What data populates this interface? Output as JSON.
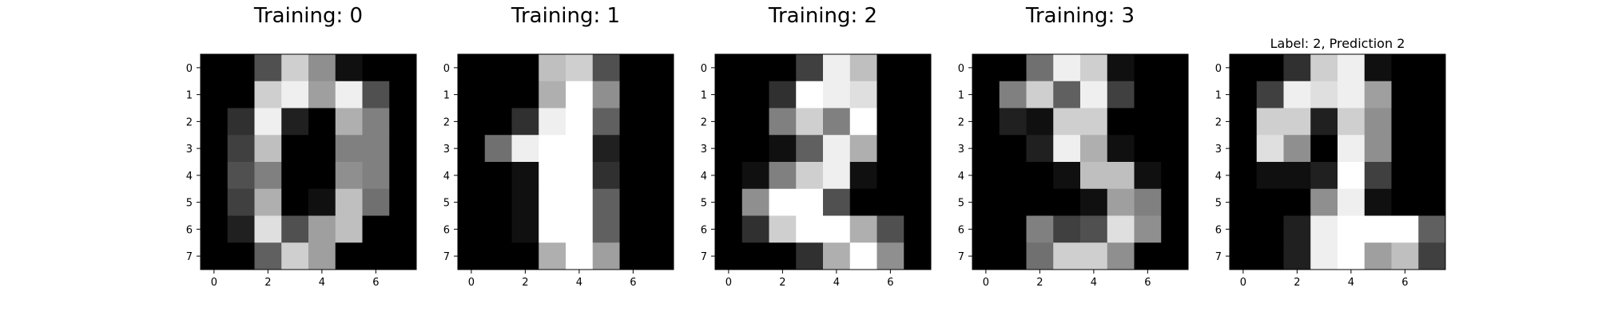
{
  "chart_data": [
    {
      "type": "heatmap",
      "title": "Training: 0",
      "title_size": "large",
      "colormap": "gray",
      "value_range": [
        0,
        16
      ],
      "x_ticks": [
        0,
        2,
        4,
        6
      ],
      "y_ticks": [
        0,
        1,
        2,
        3,
        4,
        5,
        6,
        7
      ],
      "values": [
        [
          0,
          0,
          5,
          13,
          9,
          1,
          0,
          0
        ],
        [
          0,
          0,
          13,
          15,
          10,
          15,
          5,
          0
        ],
        [
          0,
          3,
          15,
          2,
          0,
          11,
          8,
          0
        ],
        [
          0,
          4,
          12,
          0,
          0,
          8,
          8,
          0
        ],
        [
          0,
          5,
          8,
          0,
          0,
          9,
          8,
          0
        ],
        [
          0,
          4,
          11,
          0,
          1,
          12,
          7,
          0
        ],
        [
          0,
          2,
          14,
          5,
          10,
          12,
          0,
          0
        ],
        [
          0,
          0,
          6,
          13,
          10,
          0,
          0,
          0
        ]
      ]
    },
    {
      "type": "heatmap",
      "title": "Training: 1",
      "title_size": "large",
      "colormap": "gray",
      "value_range": [
        0,
        16
      ],
      "x_ticks": [
        0,
        2,
        4,
        6
      ],
      "y_ticks": [
        0,
        1,
        2,
        3,
        4,
        5,
        6,
        7
      ],
      "values": [
        [
          0,
          0,
          0,
          12,
          13,
          5,
          0,
          0
        ],
        [
          0,
          0,
          0,
          11,
          16,
          9,
          0,
          0
        ],
        [
          0,
          0,
          3,
          15,
          16,
          6,
          0,
          0
        ],
        [
          0,
          7,
          15,
          16,
          16,
          2,
          0,
          0
        ],
        [
          0,
          0,
          1,
          16,
          16,
          3,
          0,
          0
        ],
        [
          0,
          0,
          1,
          16,
          16,
          6,
          0,
          0
        ],
        [
          0,
          0,
          1,
          16,
          16,
          6,
          0,
          0
        ],
        [
          0,
          0,
          0,
          11,
          16,
          10,
          0,
          0
        ]
      ]
    },
    {
      "type": "heatmap",
      "title": "Training: 2",
      "title_size": "large",
      "colormap": "gray",
      "value_range": [
        0,
        16
      ],
      "x_ticks": [
        0,
        2,
        4,
        6
      ],
      "y_ticks": [
        0,
        1,
        2,
        3,
        4,
        5,
        6,
        7
      ],
      "values": [
        [
          0,
          0,
          0,
          4,
          15,
          12,
          0,
          0
        ],
        [
          0,
          0,
          3,
          16,
          15,
          14,
          0,
          0
        ],
        [
          0,
          0,
          8,
          13,
          8,
          16,
          0,
          0
        ],
        [
          0,
          0,
          1,
          6,
          15,
          11,
          0,
          0
        ],
        [
          0,
          1,
          8,
          13,
          15,
          1,
          0,
          0
        ],
        [
          0,
          9,
          16,
          16,
          5,
          0,
          0,
          0
        ],
        [
          0,
          3,
          13,
          16,
          16,
          11,
          5,
          0
        ],
        [
          0,
          0,
          0,
          3,
          11,
          16,
          9,
          0
        ]
      ]
    },
    {
      "type": "heatmap",
      "title": "Training: 3",
      "title_size": "large",
      "colormap": "gray",
      "value_range": [
        0,
        16
      ],
      "x_ticks": [
        0,
        2,
        4,
        6
      ],
      "y_ticks": [
        0,
        1,
        2,
        3,
        4,
        5,
        6,
        7
      ],
      "values": [
        [
          0,
          0,
          7,
          15,
          13,
          1,
          0,
          0
        ],
        [
          0,
          8,
          13,
          6,
          15,
          4,
          0,
          0
        ],
        [
          0,
          2,
          1,
          13,
          13,
          0,
          0,
          0
        ],
        [
          0,
          0,
          2,
          15,
          11,
          1,
          0,
          0
        ],
        [
          0,
          0,
          0,
          1,
          12,
          12,
          1,
          0
        ],
        [
          0,
          0,
          0,
          0,
          1,
          10,
          8,
          0
        ],
        [
          0,
          0,
          8,
          4,
          5,
          14,
          9,
          0
        ],
        [
          0,
          0,
          7,
          13,
          13,
          9,
          0,
          0
        ]
      ]
    },
    {
      "type": "heatmap",
      "title": "Label: 2, Prediction 2",
      "title_size": "small",
      "colormap": "gray",
      "value_range": [
        0,
        16
      ],
      "x_ticks": [
        0,
        2,
        4,
        6
      ],
      "y_ticks": [
        0,
        1,
        2,
        3,
        4,
        5,
        6,
        7
      ],
      "values": [
        [
          0,
          0,
          3,
          13,
          15,
          1,
          0,
          0
        ],
        [
          0,
          4,
          15,
          14,
          15,
          10,
          0,
          0
        ],
        [
          0,
          13,
          13,
          2,
          13,
          9,
          0,
          0
        ],
        [
          0,
          14,
          9,
          0,
          15,
          9,
          0,
          0
        ],
        [
          0,
          1,
          1,
          2,
          16,
          4,
          0,
          0
        ],
        [
          0,
          0,
          0,
          9,
          15,
          1,
          0,
          0
        ],
        [
          0,
          0,
          2,
          15,
          16,
          16,
          16,
          6
        ],
        [
          0,
          0,
          2,
          15,
          16,
          10,
          12,
          4
        ]
      ]
    }
  ]
}
